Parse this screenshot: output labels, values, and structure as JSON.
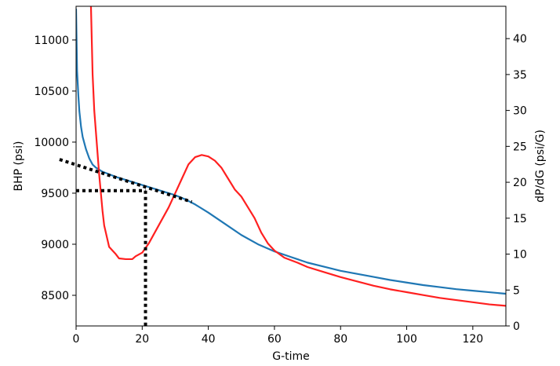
{
  "chart_data": {
    "type": "line",
    "title": "",
    "xlabel": "G-time",
    "ylabel_left": "BHP (psi)",
    "ylabel_right": "dP/dG (psi/G)",
    "xlim": [
      0,
      130
    ],
    "ylim_left": [
      8200,
      11330
    ],
    "ylim_right": [
      0,
      44.5
    ],
    "x_ticks": [
      0,
      20,
      40,
      60,
      80,
      100,
      120
    ],
    "y_left_ticks": [
      8500,
      9000,
      9500,
      10000,
      10500,
      11000
    ],
    "y_right_ticks": [
      0,
      5,
      10,
      15,
      20,
      25,
      30,
      35,
      40
    ],
    "grid": false,
    "legend": "none",
    "series": [
      {
        "axis": "left",
        "color": "#1f77b4",
        "points": [
          [
            0,
            11300
          ],
          [
            0.3,
            10700
          ],
          [
            0.7,
            10450
          ],
          [
            1,
            10300
          ],
          [
            1.5,
            10150
          ],
          [
            2,
            10050
          ],
          [
            3,
            9930
          ],
          [
            4,
            9840
          ],
          [
            5,
            9780
          ],
          [
            6,
            9750
          ],
          [
            8,
            9710
          ],
          [
            10,
            9685
          ],
          [
            12,
            9660
          ],
          [
            15,
            9630
          ],
          [
            18,
            9600
          ],
          [
            20,
            9580
          ],
          [
            22,
            9560
          ],
          [
            25,
            9530
          ],
          [
            28,
            9500
          ],
          [
            30,
            9480
          ],
          [
            33,
            9440
          ],
          [
            36,
            9390
          ],
          [
            40,
            9310
          ],
          [
            45,
            9200
          ],
          [
            50,
            9090
          ],
          [
            55,
            9000
          ],
          [
            60,
            8930
          ],
          [
            65,
            8875
          ],
          [
            70,
            8820
          ],
          [
            75,
            8780
          ],
          [
            80,
            8740
          ],
          [
            85,
            8710
          ],
          [
            90,
            8680
          ],
          [
            95,
            8650
          ],
          [
            100,
            8625
          ],
          [
            105,
            8600
          ],
          [
            110,
            8580
          ],
          [
            115,
            8560
          ],
          [
            120,
            8545
          ],
          [
            125,
            8530
          ],
          [
            130,
            8515
          ]
        ]
      },
      {
        "axis": "right",
        "color": "#ff2020",
        "points": [
          [
            4.5,
            44.5
          ],
          [
            5,
            35
          ],
          [
            5.5,
            30
          ],
          [
            6,
            27
          ],
          [
            7,
            21
          ],
          [
            8,
            16
          ],
          [
            8.5,
            14
          ],
          [
            10,
            11
          ],
          [
            12,
            10
          ],
          [
            13,
            9.4
          ],
          [
            15,
            9.3
          ],
          [
            17,
            9.3
          ],
          [
            18,
            9.7
          ],
          [
            20,
            10.2
          ],
          [
            22,
            11.5
          ],
          [
            25,
            14
          ],
          [
            28,
            16.5
          ],
          [
            30,
            18.5
          ],
          [
            32,
            20.5
          ],
          [
            34,
            22.5
          ],
          [
            36,
            23.5
          ],
          [
            38,
            23.8
          ],
          [
            40,
            23.6
          ],
          [
            42,
            23
          ],
          [
            44,
            22
          ],
          [
            46,
            20.5
          ],
          [
            48,
            19
          ],
          [
            50,
            18
          ],
          [
            52,
            16.5
          ],
          [
            54,
            15
          ],
          [
            56,
            13
          ],
          [
            58,
            11.5
          ],
          [
            60,
            10.5
          ],
          [
            63,
            9.5
          ],
          [
            67,
            8.8
          ],
          [
            70,
            8.2
          ],
          [
            75,
            7.5
          ],
          [
            80,
            6.8
          ],
          [
            85,
            6.2
          ],
          [
            90,
            5.6
          ],
          [
            95,
            5.1
          ],
          [
            100,
            4.7
          ],
          [
            105,
            4.3
          ],
          [
            110,
            3.9
          ],
          [
            115,
            3.6
          ],
          [
            120,
            3.3
          ],
          [
            125,
            3.0
          ],
          [
            130,
            2.8
          ]
        ]
      }
    ],
    "annotations": [
      {
        "kind": "dotted-tangent",
        "axis": "left",
        "points": [
          [
            -5,
            9830
          ],
          [
            35,
            9415
          ]
        ]
      },
      {
        "kind": "dotted-horizontal",
        "axis": "left",
        "points": [
          [
            0,
            9525
          ],
          [
            21,
            9525
          ]
        ]
      },
      {
        "kind": "dotted-vertical",
        "axis": "left",
        "points": [
          [
            21,
            9525
          ],
          [
            21,
            8200
          ]
        ]
      }
    ]
  }
}
